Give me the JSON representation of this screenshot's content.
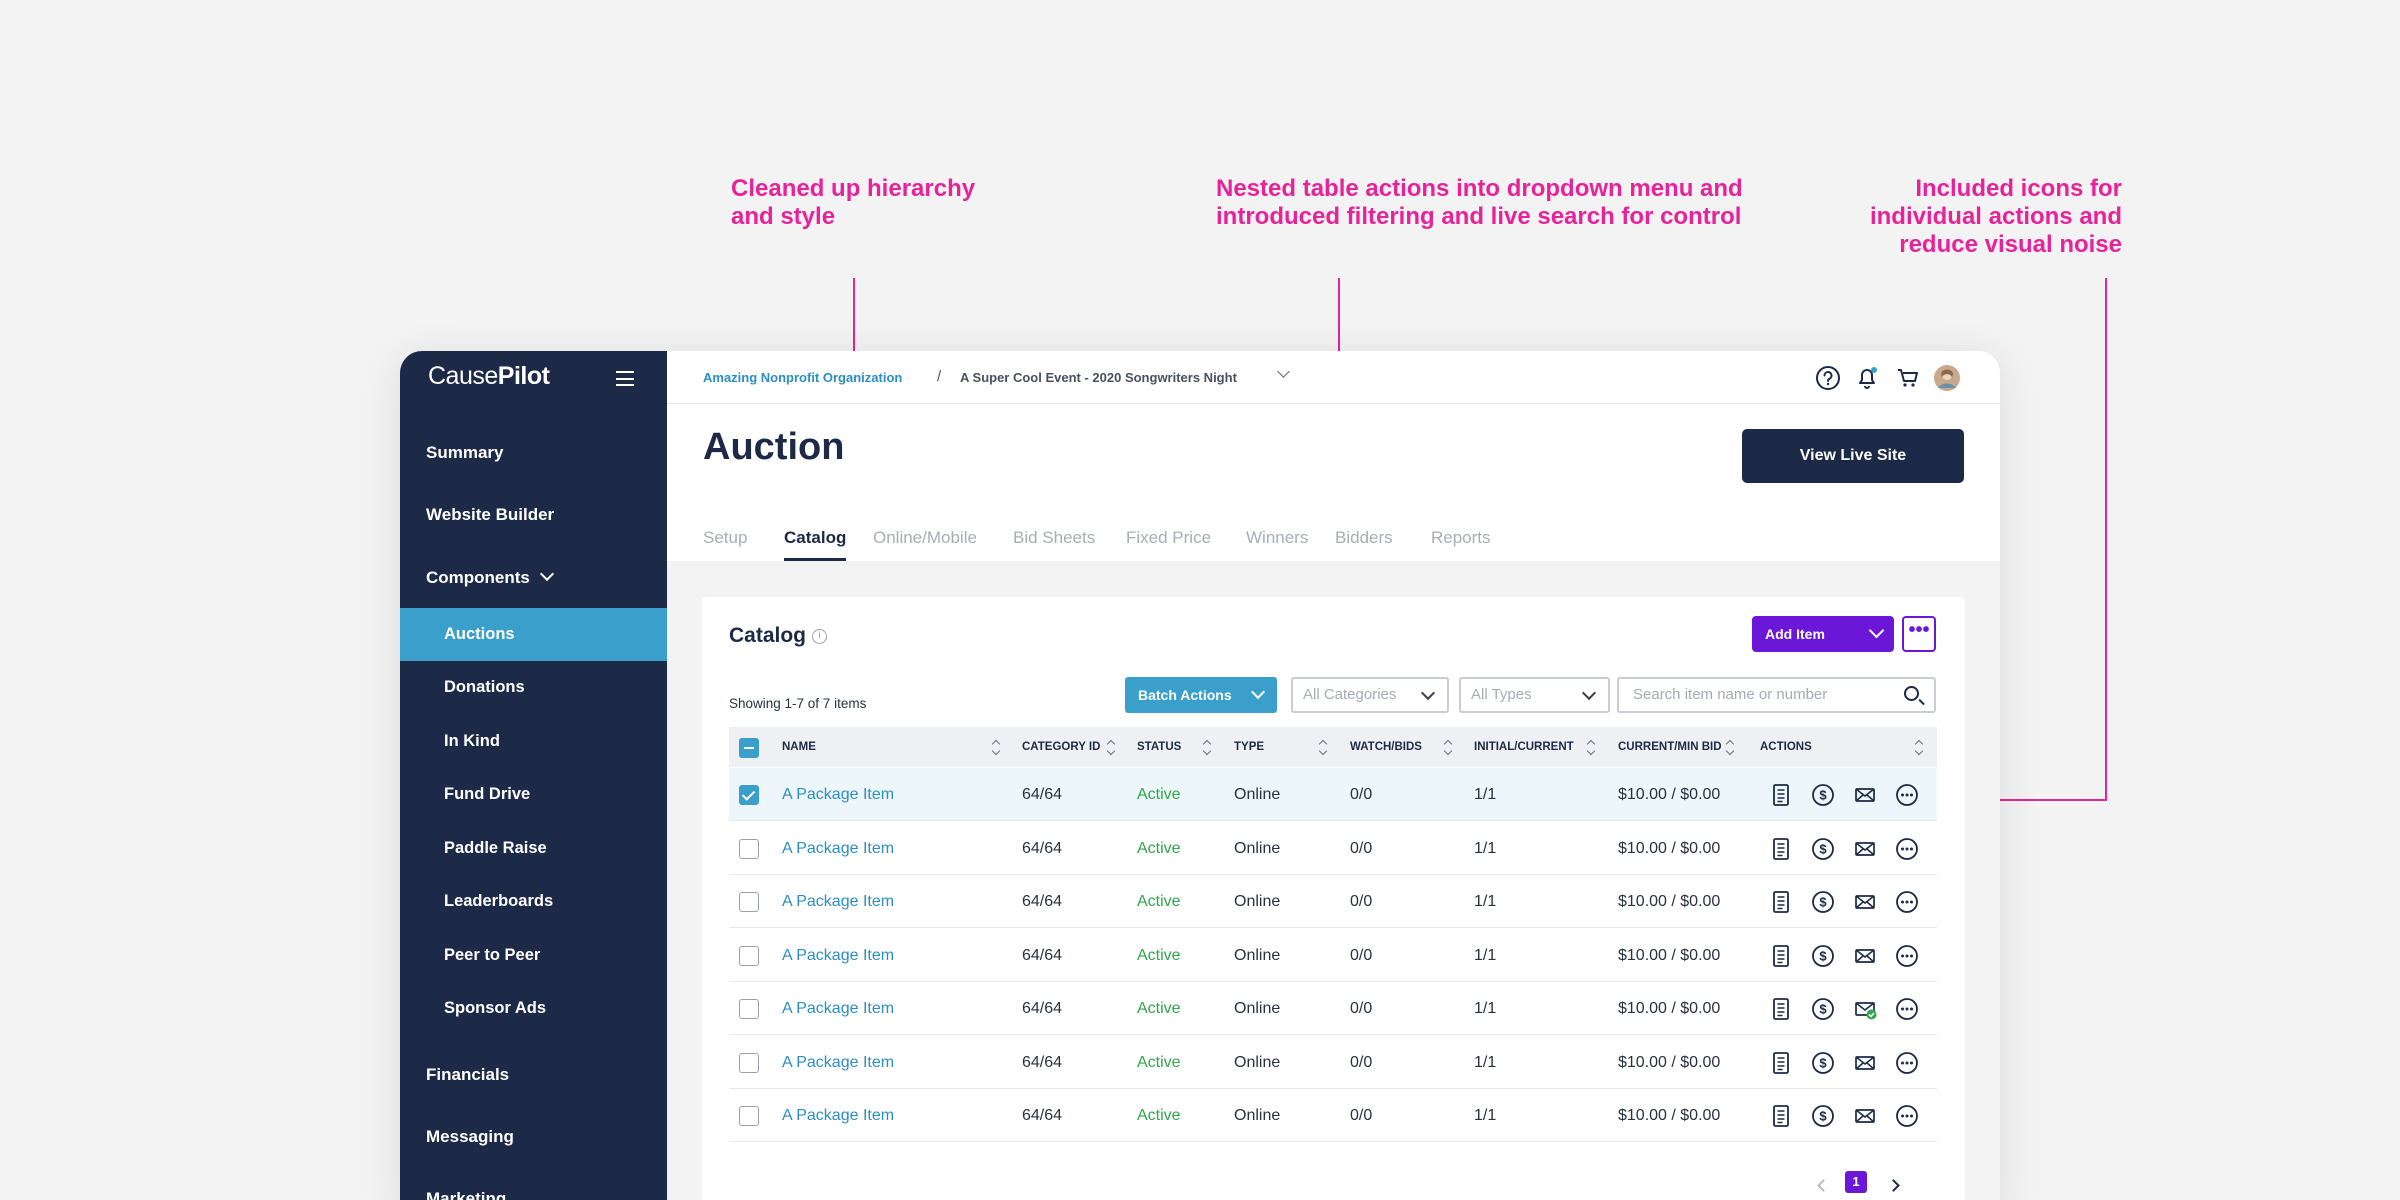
{
  "annotations": [
    {
      "text": "Cleaned up hierarchy\nand style"
    },
    {
      "text": "Nested table actions into dropdown menu and\nintroduced filtering and live search for control"
    },
    {
      "text": "Included icons for\nindividual actions and\nreduce visual noise"
    }
  ],
  "app": {
    "logo": {
      "light": "Cause",
      "bold": "Pilot"
    },
    "sidebar": {
      "top_items": [
        "Summary",
        "Website Builder"
      ],
      "components_label": "Components",
      "sub_items": [
        "Auctions",
        "Donations",
        "In Kind",
        "Fund Drive",
        "Paddle Raise",
        "Leaderboards",
        "Peer to Peer",
        "Sponsor Ads"
      ],
      "active_sub": "Auctions",
      "bottom_items": [
        "Financials",
        "Messaging",
        "Marketing"
      ]
    },
    "breadcrumb": {
      "org": "Amazing Nonprofit Organization",
      "separator": "/",
      "event": "A Super Cool Event - 2020 Songwriters Night"
    },
    "top_icons": [
      "help-icon",
      "bell-icon",
      "cart-icon",
      "avatar"
    ],
    "page_title": "Auction",
    "view_live_label": "View Live Site",
    "tabs": [
      "Setup",
      "Catalog",
      "Online/Mobile",
      "Bid Sheets",
      "Fixed Price",
      "Winners",
      "Bidders",
      "Reports"
    ],
    "active_tab": "Catalog",
    "catalog": {
      "title": "Catalog",
      "info_glyph": "i",
      "add_item_label": "Add Item",
      "more_glyph": "•••",
      "showing": "Showing 1-7 of 7 items",
      "batch_label": "Batch Actions",
      "category_placeholder": "All Categories",
      "type_placeholder": "All Types",
      "search_placeholder": "Search item name or number",
      "columns": [
        "NAME",
        "CATEGORY ID",
        "STATUS",
        "TYPE",
        "WATCH/BIDS",
        "INITIAL/CURRENT",
        "CURRENT/MIN BID",
        "ACTIONS"
      ],
      "rows": [
        {
          "name": "A Package Item",
          "category": "64/64",
          "status": "Active",
          "type": "Online",
          "watch": "0/0",
          "initial": "1/1",
          "bid": "$10.00 / $0.00",
          "checked": true,
          "mail_sent": false
        },
        {
          "name": "A Package Item",
          "category": "64/64",
          "status": "Active",
          "type": "Online",
          "watch": "0/0",
          "initial": "1/1",
          "bid": "$10.00 / $0.00",
          "checked": false,
          "mail_sent": false
        },
        {
          "name": "A Package Item",
          "category": "64/64",
          "status": "Active",
          "type": "Online",
          "watch": "0/0",
          "initial": "1/1",
          "bid": "$10.00 / $0.00",
          "checked": false,
          "mail_sent": false
        },
        {
          "name": "A Package Item",
          "category": "64/64",
          "status": "Active",
          "type": "Online",
          "watch": "0/0",
          "initial": "1/1",
          "bid": "$10.00 / $0.00",
          "checked": false,
          "mail_sent": false
        },
        {
          "name": "A Package Item",
          "category": "64/64",
          "status": "Active",
          "type": "Online",
          "watch": "0/0",
          "initial": "1/1",
          "bid": "$10.00 / $0.00",
          "checked": false,
          "mail_sent": true
        },
        {
          "name": "A Package Item",
          "category": "64/64",
          "status": "Active",
          "type": "Online",
          "watch": "0/0",
          "initial": "1/1",
          "bid": "$10.00 / $0.00",
          "checked": false,
          "mail_sent": false
        },
        {
          "name": "A Package Item",
          "category": "64/64",
          "status": "Active",
          "type": "Online",
          "watch": "0/0",
          "initial": "1/1",
          "bid": "$10.00 / $0.00",
          "checked": false,
          "mail_sent": false
        }
      ],
      "row_action_icons": [
        "document-icon",
        "dollar-icon",
        "mail-icon",
        "more-icon"
      ],
      "pagination": {
        "current_page": "1"
      }
    },
    "colors": {
      "accent": "#e6239a",
      "navy": "#1c2a47",
      "blue": "#3a9fcb",
      "purple": "#6a17d8",
      "active_green": "#2ea84a"
    }
  }
}
